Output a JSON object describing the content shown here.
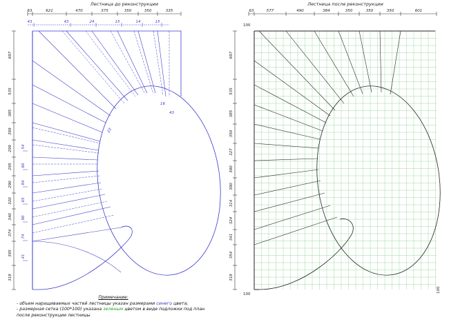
{
  "left_drawing": {
    "title": "Лестница до реконструкции",
    "top_dims": [
      "63",
      "621",
      "470",
      "375",
      "350",
      "350",
      "335"
    ],
    "blue_top_dims": [
      "43",
      "43",
      "24",
      "15",
      "14",
      "15"
    ],
    "left_dims": [
      "697",
      "535",
      "385",
      "399",
      "299",
      "295",
      "290",
      "320",
      "340",
      "374",
      "395",
      "318"
    ],
    "blue_left_dims": [
      "54",
      "60",
      "84",
      "65",
      "90",
      "74",
      "41"
    ],
    "inner_blue_dims": [
      "16",
      "43",
      "23"
    ]
  },
  "right_drawing": {
    "title": "Лестница после реконструкции",
    "top_dims": [
      "63",
      "577",
      "490",
      "384",
      "350",
      "350",
      "350",
      "601"
    ],
    "corner_dims": [
      "100",
      "100",
      "100"
    ],
    "left_dims": [
      "697",
      "535",
      "385",
      "350",
      "327",
      "300",
      "300",
      "314",
      "324",
      "341",
      "354",
      "318"
    ]
  },
  "notes": {
    "header": "Примечание:",
    "line1_pre": "- объем наращиваемых частей лестницы указан размерами ",
    "line1_color": "синего",
    "line1_post": " цвета;",
    "line2_pre": "- размерная сетка (100*100) указана ",
    "line2_color": "зеленым",
    "line2_post": " цветом в виде подложки под план",
    "line3": "после реконструкции лестницы"
  },
  "colors": {
    "blue": "#3a3acc",
    "green": "#7ccf7c",
    "black": "#222222"
  }
}
